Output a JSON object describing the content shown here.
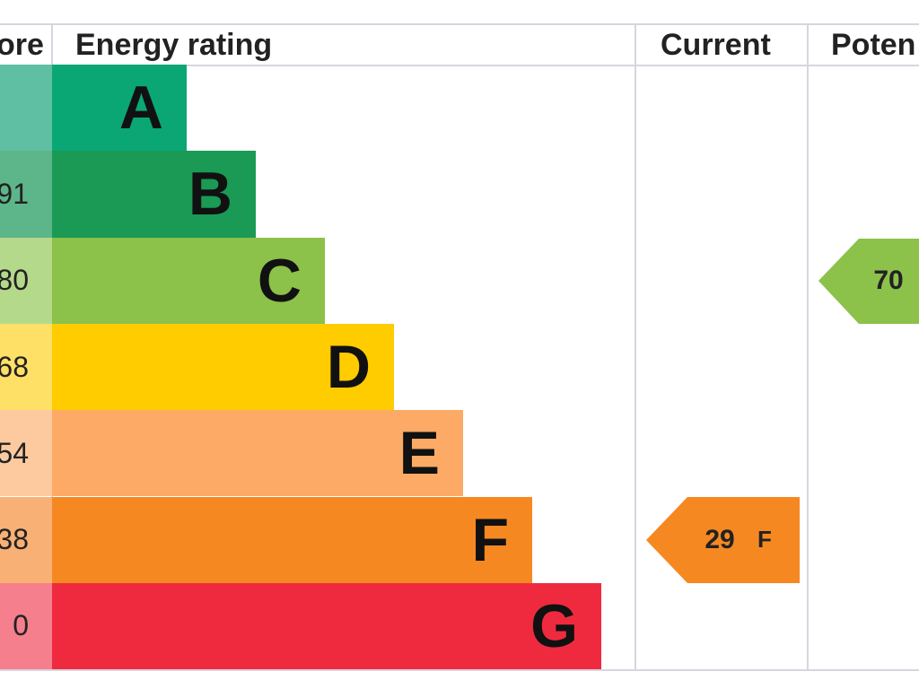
{
  "header": {
    "score": "ore",
    "rating": "Energy rating",
    "current": "Current",
    "potential": "Poten"
  },
  "rows": [
    {
      "score": null,
      "band": "A"
    },
    {
      "score": "91",
      "band": "B"
    },
    {
      "score": "80",
      "band": "C"
    },
    {
      "score": "68",
      "band": "D"
    },
    {
      "score": "54",
      "band": "E"
    },
    {
      "score": "38",
      "band": "F"
    },
    {
      "score": "0",
      "band": "G"
    }
  ],
  "current": {
    "value": "29",
    "band": "F"
  },
  "potential": {
    "value": "70"
  }
}
